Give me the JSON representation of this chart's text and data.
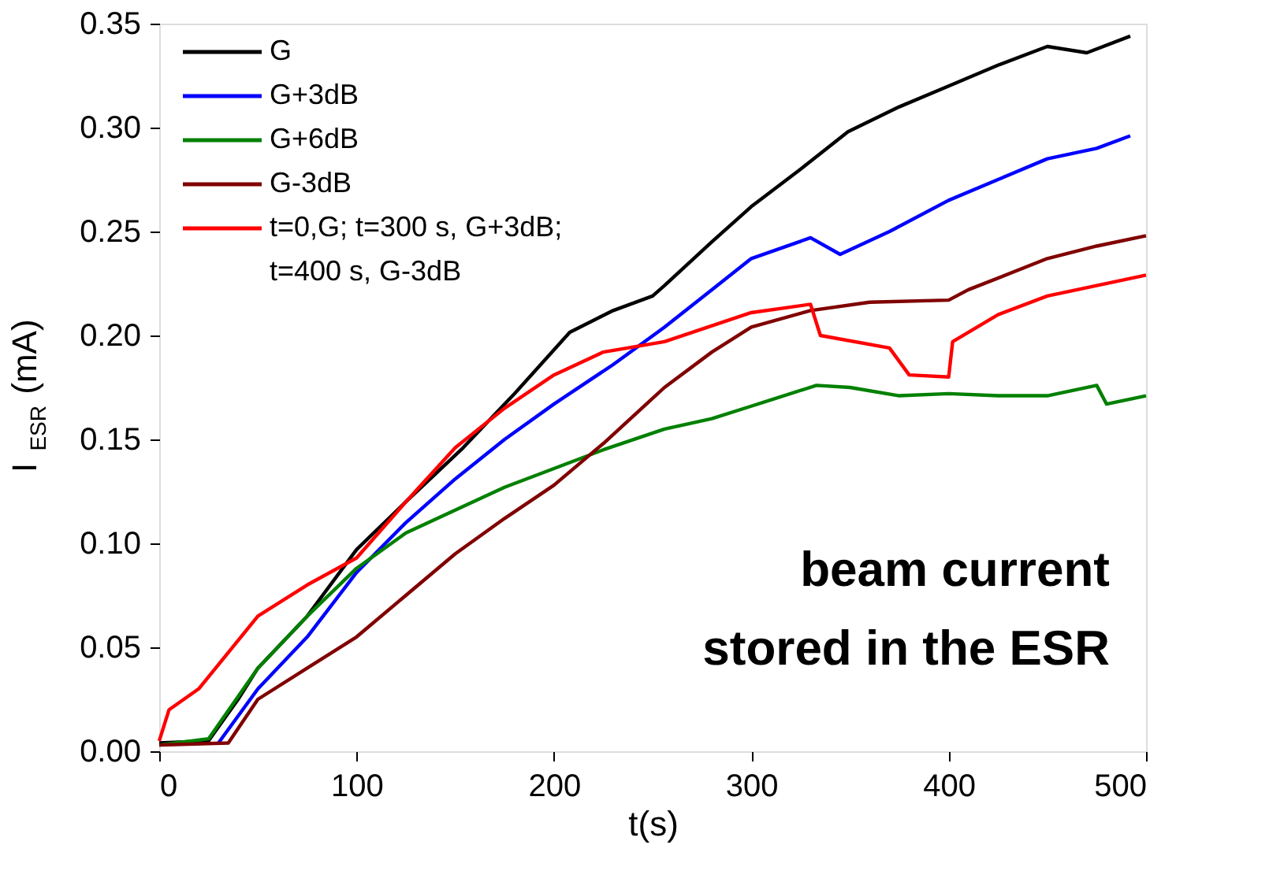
{
  "chart_data": {
    "type": "line",
    "xlabel": "t(s)",
    "ylabel": "I$_{ESR}$ (mA)",
    "xlim": [
      0,
      500
    ],
    "xticks": [
      0,
      100,
      200,
      300,
      400,
      500
    ],
    "ylim": [
      0,
      0.35
    ],
    "yticks": [
      {
        "value": 0,
        "label": "0.00"
      },
      {
        "value": 0.05,
        "label": "0.05"
      },
      {
        "value": 0.1,
        "label": "0.10"
      },
      {
        "value": 0.15,
        "label": "0.15"
      },
      {
        "value": 0.2,
        "label": "0.20"
      },
      {
        "value": 0.25,
        "label": "0.25"
      },
      {
        "value": 0.3,
        "label": "0.30"
      },
      {
        "value": 0.35,
        "label": "0.35"
      }
    ],
    "grid": false,
    "legend": "top left",
    "line_style": "solid",
    "marker": "none",
    "annotations": [
      "beam current\nstored in the ESR"
    ],
    "series": [
      {
        "name": "G",
        "color": "#000000",
        "x": [
          0,
          25,
          40,
          50,
          75,
          100,
          125,
          154,
          180,
          208,
          230,
          250,
          256,
          280,
          300,
          325,
          349,
          375,
          400,
          425,
          450,
          470,
          492
        ],
        "values": [
          0.004,
          0.005,
          0.025,
          0.04,
          0.065,
          0.097,
          0.12,
          0.146,
          0.172,
          0.2015,
          0.212,
          0.219,
          0.224,
          0.245,
          0.262,
          0.28,
          0.298,
          0.31,
          0.32,
          0.33,
          0.339,
          0.336,
          0.344
        ]
      },
      {
        "name": "G+3dB",
        "color": "#0000ff",
        "x": [
          30,
          50,
          75,
          100,
          125,
          150,
          175,
          200,
          230,
          256,
          280,
          300,
          330,
          345,
          370,
          400,
          425,
          450,
          475,
          492
        ],
        "values": [
          0.004,
          0.03,
          0.055,
          0.086,
          0.11,
          0.131,
          0.15,
          0.167,
          0.186,
          0.204,
          0.222,
          0.237,
          0.247,
          0.239,
          0.25,
          0.265,
          0.275,
          0.285,
          0.29,
          0.296
        ]
      },
      {
        "name": "G+6dB",
        "color": "#008000",
        "x": [
          0,
          25,
          50,
          75,
          100,
          125,
          150,
          175,
          200,
          225,
          256,
          280,
          300,
          333,
          350,
          375,
          400,
          425,
          450,
          475,
          480,
          500
        ],
        "values": [
          0.003,
          0.006,
          0.04,
          0.065,
          0.088,
          0.105,
          0.116,
          0.127,
          0.136,
          0.145,
          0.155,
          0.16,
          0.166,
          0.176,
          0.175,
          0.171,
          0.172,
          0.171,
          0.171,
          0.176,
          0.167,
          0.171
        ]
      },
      {
        "name": "G-3dB",
        "color": "#800000",
        "x": [
          0,
          35,
          50,
          75,
          100,
          125,
          150,
          175,
          200,
          225,
          256,
          280,
          300,
          330,
          360,
          400,
          410,
          450,
          475,
          500
        ],
        "values": [
          0.003,
          0.004,
          0.025,
          0.04,
          0.055,
          0.075,
          0.095,
          0.112,
          0.128,
          0.148,
          0.175,
          0.192,
          0.204,
          0.212,
          0.216,
          0.217,
          0.222,
          0.237,
          0.243,
          0.248
        ]
      },
      {
        "name": "t=0,G; t=300 s, G+3dB;\nt=400 s, G-3dB",
        "color": "#ff0000",
        "x": [
          0,
          5,
          20,
          50,
          75,
          100,
          125,
          150,
          175,
          200,
          225,
          256,
          300,
          330,
          335,
          370,
          380,
          400,
          402,
          425,
          450,
          475,
          500
        ],
        "values": [
          0.005,
          0.02,
          0.03,
          0.065,
          0.08,
          0.093,
          0.12,
          0.146,
          0.165,
          0.181,
          0.192,
          0.197,
          0.211,
          0.215,
          0.2,
          0.194,
          0.181,
          0.18,
          0.197,
          0.21,
          0.219,
          0.224,
          0.229
        ]
      }
    ]
  }
}
